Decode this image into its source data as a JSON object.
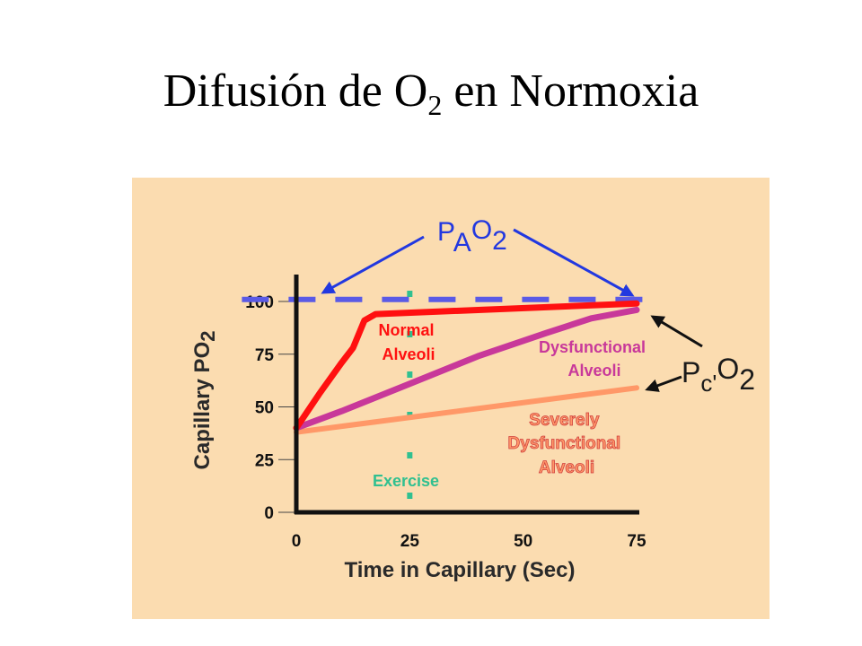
{
  "title": {
    "text": "Difusión de O",
    "sub": "2",
    "rest": " en Normoxia"
  },
  "chart_data": {
    "type": "line",
    "xlabel": "Time in Capillary (Sec)",
    "ylabel": "Capillary PO",
    "ylabel_sub": "2",
    "xlim": [
      0,
      75
    ],
    "ylim": [
      0,
      100
    ],
    "x_ticks": [
      "0",
      "25",
      "50",
      "75"
    ],
    "y_ticks": [
      "0",
      "25",
      "50",
      "75",
      "100"
    ],
    "series": [
      {
        "name": "Normal Alveoli",
        "label_lines": [
          "Normal",
          "Alveoli"
        ],
        "color": "#ff1010",
        "points": [
          [
            0,
            40
          ],
          [
            5,
            56
          ],
          [
            10,
            71
          ],
          [
            12.5,
            78
          ],
          [
            15,
            91
          ],
          [
            17.5,
            94
          ],
          [
            75,
            99
          ]
        ]
      },
      {
        "name": "Dysfunctional Alveoli",
        "label_lines": [
          "Dysfunctional",
          "Alveoli"
        ],
        "color": "#c8389a",
        "points": [
          [
            0,
            40
          ],
          [
            10,
            48
          ],
          [
            25,
            61
          ],
          [
            40,
            74
          ],
          [
            55,
            85
          ],
          [
            65,
            92
          ],
          [
            75,
            96
          ]
        ]
      },
      {
        "name": "Severely Dysfunctional Alveoli",
        "label_lines": [
          "Severely",
          "Dysfunctional",
          "Alveoli"
        ],
        "color": "#ff9868",
        "points": [
          [
            0,
            38
          ],
          [
            75,
            59
          ]
        ]
      },
      {
        "name": "PAO2",
        "color": "#5a5ae6",
        "points": [
          [
            0,
            101
          ],
          [
            75,
            101
          ]
        ]
      }
    ],
    "annotations": {
      "pao2": {
        "main": "P",
        "sub": "A",
        "rest": "O",
        "sub2": "2",
        "color": "#2238e0"
      },
      "pco2": {
        "main": "P",
        "sub": "c'",
        "rest": "O",
        "sub2": "2",
        "color": "#1a1a1a"
      },
      "exercise": {
        "text": "Exercise",
        "x": 25,
        "color": "#30c090"
      }
    }
  }
}
